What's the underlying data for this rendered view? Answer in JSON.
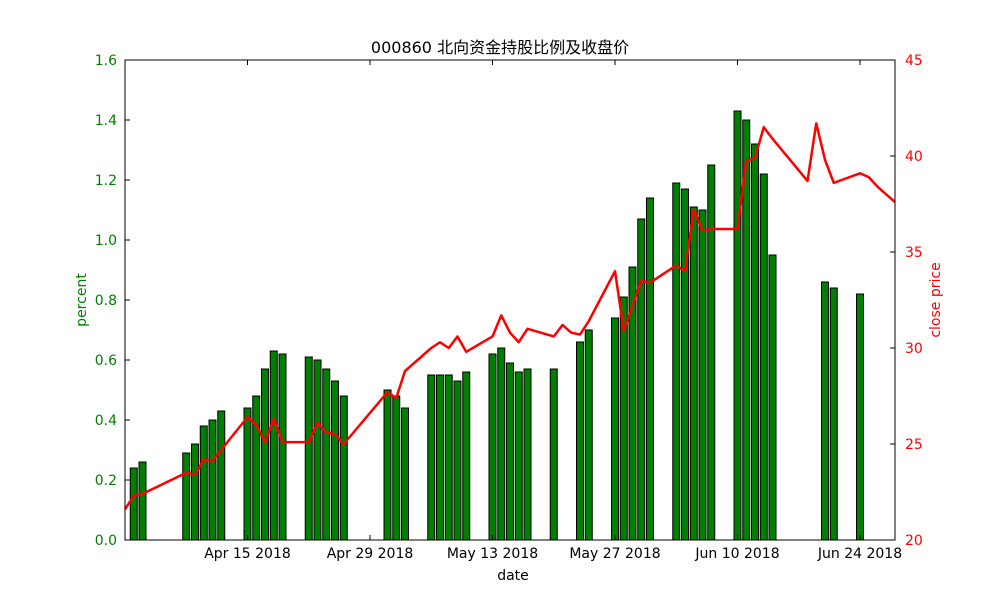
{
  "chart_data": {
    "type": "bar+line",
    "title": "000860 北向资金持股比例及收盘价",
    "xlabel": "date",
    "ylabel_left": "percent",
    "ylabel_right": "close price",
    "x_range": [
      "2018-04-02",
      "2018-06-29"
    ],
    "x_ticks": [
      {
        "date": "2018-04-16",
        "label": "Apr 15 2018"
      },
      {
        "date": "2018-04-30",
        "label": "Apr 29 2018"
      },
      {
        "date": "2018-05-14",
        "label": "May 13 2018"
      },
      {
        "date": "2018-05-28",
        "label": "May 27 2018"
      },
      {
        "date": "2018-06-11",
        "label": "Jun 10 2018"
      },
      {
        "date": "2018-06-25",
        "label": "Jun 24 2018"
      }
    ],
    "ylim_left": [
      0,
      1.6
    ],
    "yticks_left": [
      "0.0",
      "0.2",
      "0.4",
      "0.6",
      "0.8",
      "1.0",
      "1.2",
      "1.4",
      "1.6"
    ],
    "ylim_right": [
      20,
      45
    ],
    "yticks_right": [
      "20",
      "25",
      "30",
      "35",
      "40",
      "45"
    ],
    "grid": false,
    "colors": {
      "bars": "#007f00",
      "bar_edge": "#000000",
      "line": "#ff0000",
      "left_axis": "#007f00",
      "right_axis": "#ff0000"
    },
    "series": [
      {
        "type": "bar",
        "axis": "left",
        "x": [
          "2018-04-03",
          "2018-04-04",
          "2018-04-09",
          "2018-04-10",
          "2018-04-11",
          "2018-04-12",
          "2018-04-13",
          "2018-04-16",
          "2018-04-17",
          "2018-04-18",
          "2018-04-19",
          "2018-04-20",
          "2018-04-23",
          "2018-04-24",
          "2018-04-25",
          "2018-04-26",
          "2018-04-27",
          "2018-05-02",
          "2018-05-03",
          "2018-05-04",
          "2018-05-07",
          "2018-05-08",
          "2018-05-09",
          "2018-05-10",
          "2018-05-11",
          "2018-05-14",
          "2018-05-15",
          "2018-05-16",
          "2018-05-17",
          "2018-05-18",
          "2018-05-21",
          "2018-05-24",
          "2018-05-25",
          "2018-05-28",
          "2018-05-29",
          "2018-05-30",
          "2018-05-31",
          "2018-06-01",
          "2018-06-04",
          "2018-06-05",
          "2018-06-06",
          "2018-06-07",
          "2018-06-08",
          "2018-06-11",
          "2018-06-12",
          "2018-06-13",
          "2018-06-14",
          "2018-06-15",
          "2018-06-21",
          "2018-06-22",
          "2018-06-25"
        ],
        "values": [
          0.24,
          0.26,
          0.29,
          0.32,
          0.38,
          0.4,
          0.43,
          0.44,
          0.48,
          0.57,
          0.63,
          0.62,
          0.61,
          0.6,
          0.57,
          0.53,
          0.48,
          0.5,
          0.48,
          0.44,
          0.55,
          0.55,
          0.55,
          0.53,
          0.56,
          0.62,
          0.64,
          0.59,
          0.56,
          0.57,
          0.57,
          0.66,
          0.7,
          0.74,
          0.81,
          0.91,
          1.07,
          1.14,
          1.19,
          1.17,
          1.11,
          1.1,
          1.25,
          1.43,
          1.4,
          1.32,
          1.22,
          0.95,
          0.86,
          0.84,
          0.82
        ]
      },
      {
        "type": "line",
        "axis": "right",
        "x": [
          "2018-04-02",
          "2018-04-03",
          "2018-04-04",
          "2018-04-09",
          "2018-04-10",
          "2018-04-11",
          "2018-04-12",
          "2018-04-13",
          "2018-04-16",
          "2018-04-17",
          "2018-04-18",
          "2018-04-19",
          "2018-04-20",
          "2018-04-23",
          "2018-04-24",
          "2018-04-25",
          "2018-04-26",
          "2018-04-27",
          "2018-05-02",
          "2018-05-03",
          "2018-05-04",
          "2018-05-07",
          "2018-05-08",
          "2018-05-09",
          "2018-05-10",
          "2018-05-11",
          "2018-05-14",
          "2018-05-15",
          "2018-05-16",
          "2018-05-17",
          "2018-05-18",
          "2018-05-21",
          "2018-05-22",
          "2018-05-23",
          "2018-05-24",
          "2018-05-25",
          "2018-05-28",
          "2018-05-29",
          "2018-05-30",
          "2018-05-31",
          "2018-06-01",
          "2018-06-04",
          "2018-06-05",
          "2018-06-06",
          "2018-06-07",
          "2018-06-08",
          "2018-06-11",
          "2018-06-12",
          "2018-06-13",
          "2018-06-14",
          "2018-06-15",
          "2018-06-19",
          "2018-06-20",
          "2018-06-21",
          "2018-06-22",
          "2018-06-25",
          "2018-06-26",
          "2018-06-27",
          "2018-06-28",
          "2018-06-29"
        ],
        "values": [
          21.6,
          22.3,
          22.4,
          23.5,
          23.4,
          24.2,
          24.1,
          24.7,
          26.4,
          26.0,
          25.1,
          26.3,
          25.1,
          25.1,
          26.1,
          25.6,
          25.5,
          25.0,
          27.7,
          27.4,
          28.8,
          30.0,
          30.3,
          30.0,
          30.6,
          29.8,
          30.6,
          31.7,
          30.8,
          30.3,
          31.0,
          30.6,
          31.2,
          30.8,
          30.7,
          31.4,
          34.0,
          30.9,
          32.2,
          33.5,
          33.4,
          34.3,
          34.0,
          37.2,
          36.1,
          36.2,
          36.2,
          39.7,
          39.9,
          41.5,
          40.9,
          38.7,
          41.7,
          39.8,
          38.6,
          39.1,
          38.9,
          38.4,
          38.0,
          37.6
        ]
      }
    ]
  }
}
